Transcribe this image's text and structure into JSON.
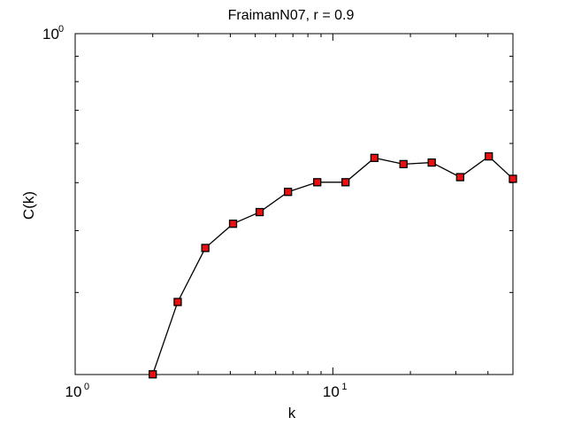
{
  "chart_data": {
    "type": "line",
    "title": "FraimanN07, r = 0.9",
    "xlabel": "k",
    "ylabel": "C(k)",
    "xscale": "log",
    "yscale": "log",
    "xlim": [
      1,
      50
    ],
    "ylim": [
      0.2048,
      1.0
    ],
    "grid": false,
    "x_ticks": [
      {
        "value": 1,
        "base": "10",
        "exp": "0"
      },
      {
        "value": 10,
        "base": "10",
        "exp": "1"
      }
    ],
    "y_ticks": [
      {
        "value": 1,
        "base": "10",
        "exp": "0"
      }
    ],
    "series": [
      {
        "marker": "square",
        "marker_face_color": "#e81010",
        "marker_edge_color": "#000000",
        "line_color": "#000000",
        "x": [
          2.0,
          2.5,
          3.2,
          4.1,
          5.2,
          6.7,
          8.7,
          11.2,
          14.5,
          18.8,
          24.2,
          31.2,
          40.3,
          50.0
        ],
        "y": [
          0.205,
          0.287,
          0.369,
          0.413,
          0.436,
          0.479,
          0.501,
          0.501,
          0.561,
          0.545,
          0.549,
          0.513,
          0.565,
          0.509
        ]
      }
    ]
  }
}
